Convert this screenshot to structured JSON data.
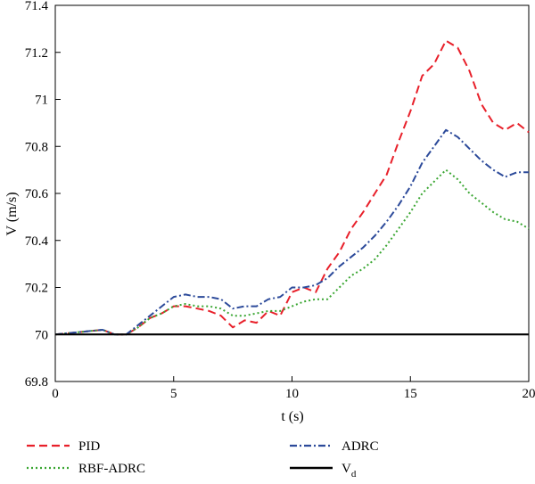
{
  "chart_data": {
    "type": "line",
    "xlabel": "t (s)",
    "ylabel": "V (m/s)",
    "xlim": [
      0,
      20
    ],
    "ylim": [
      69.8,
      71.4
    ],
    "xticks": [
      "0",
      "5",
      "10",
      "15",
      "20"
    ],
    "yticks": [
      "69.8",
      "70",
      "70.2",
      "70.4",
      "70.6",
      "70.8",
      "71",
      "71.2",
      "71.4"
    ],
    "grid": false,
    "legend_position": "bottom",
    "series": [
      {
        "name": "PID",
        "color": "#e8202a",
        "style": "dashed",
        "x": [
          0,
          1,
          2,
          2.5,
          3,
          3.5,
          4,
          4.5,
          5,
          5.5,
          6,
          6.5,
          7,
          7.5,
          8,
          8.5,
          9,
          9.5,
          10,
          10.5,
          11,
          11.5,
          12,
          12.5,
          13,
          13.5,
          14,
          14.5,
          15,
          15.5,
          16,
          16.5,
          17,
          17.5,
          18,
          18.5,
          19,
          19.5,
          20
        ],
        "y": [
          70.0,
          70.01,
          70.02,
          70.0,
          70.0,
          70.03,
          70.07,
          70.09,
          70.12,
          70.12,
          70.11,
          70.1,
          70.08,
          70.03,
          70.06,
          70.05,
          70.1,
          70.08,
          70.18,
          70.2,
          70.18,
          70.28,
          70.35,
          70.45,
          70.52,
          70.6,
          70.68,
          70.82,
          70.95,
          71.1,
          71.15,
          71.25,
          71.22,
          71.12,
          70.98,
          70.9,
          70.87,
          70.9,
          70.86
        ]
      },
      {
        "name": "RBF-ADRC",
        "color": "#3aa632",
        "style": "dotted",
        "x": [
          0,
          1,
          2,
          2.5,
          3,
          3.5,
          4,
          4.5,
          5,
          5.5,
          6,
          6.5,
          7,
          7.5,
          8,
          8.5,
          9,
          9.5,
          10,
          10.5,
          11,
          11.5,
          12,
          12.5,
          13,
          13.5,
          14,
          14.5,
          15,
          15.5,
          16,
          16.5,
          17,
          17.5,
          18,
          18.5,
          19,
          19.5,
          20
        ],
        "y": [
          70.0,
          70.01,
          70.02,
          70.0,
          70.0,
          70.03,
          70.07,
          70.09,
          70.12,
          70.13,
          70.12,
          70.12,
          70.11,
          70.08,
          70.08,
          70.09,
          70.1,
          70.1,
          70.12,
          70.14,
          70.15,
          70.15,
          70.2,
          70.25,
          70.28,
          70.32,
          70.38,
          70.45,
          70.52,
          70.6,
          70.65,
          70.7,
          70.66,
          70.6,
          70.56,
          70.52,
          70.49,
          70.48,
          70.45
        ]
      },
      {
        "name": "ADRC",
        "color": "#2c4a9a",
        "style": "dashdot",
        "x": [
          0,
          1,
          2,
          2.5,
          3,
          3.5,
          4,
          4.5,
          5,
          5.5,
          6,
          6.5,
          7,
          7.5,
          8,
          8.5,
          9,
          9.5,
          10,
          10.5,
          11,
          11.5,
          12,
          12.5,
          13,
          13.5,
          14,
          14.5,
          15,
          15.5,
          16,
          16.5,
          17,
          17.5,
          18,
          18.5,
          19,
          19.5,
          20
        ],
        "y": [
          70.0,
          70.01,
          70.02,
          70.0,
          70.0,
          70.04,
          70.08,
          70.12,
          70.16,
          70.17,
          70.16,
          70.16,
          70.15,
          70.11,
          70.12,
          70.12,
          70.15,
          70.16,
          70.2,
          70.2,
          70.21,
          70.24,
          70.29,
          70.33,
          70.37,
          70.42,
          70.48,
          70.55,
          70.63,
          70.73,
          70.8,
          70.87,
          70.84,
          70.79,
          70.74,
          70.7,
          70.67,
          70.69,
          70.69
        ]
      },
      {
        "name": "V<sub>d</sub>",
        "label_main": "V",
        "label_sub": "d",
        "color": "#000000",
        "style": "solid",
        "x": [
          0,
          20
        ],
        "y": [
          70.0,
          70.0
        ]
      }
    ]
  }
}
